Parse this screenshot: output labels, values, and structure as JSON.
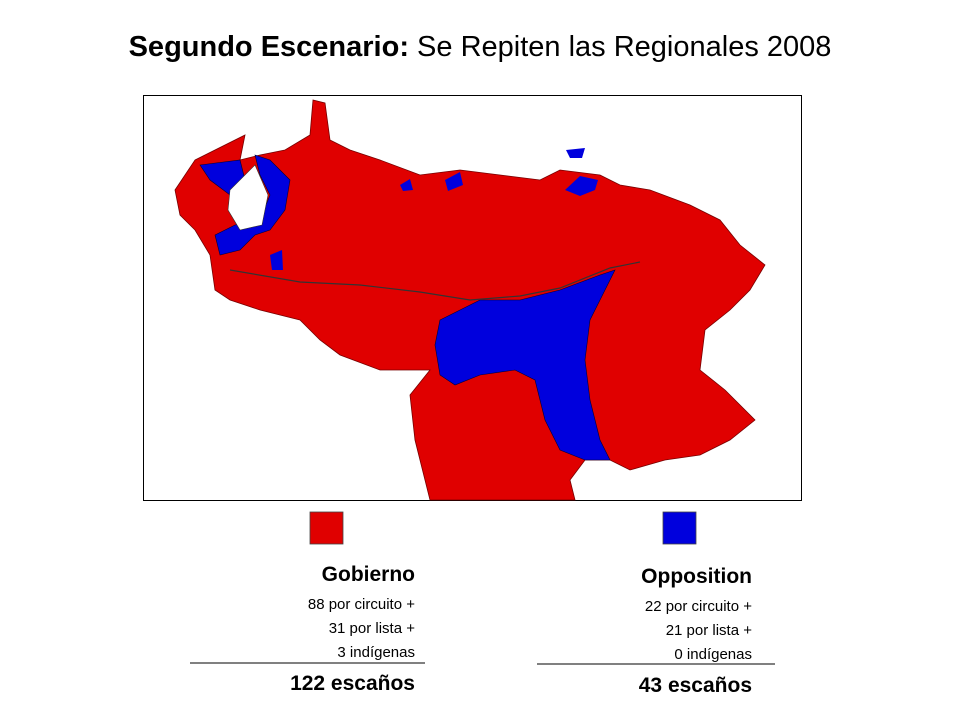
{
  "title": {
    "bold": "Segundo Escenario:",
    "rest": "Se Repiten las Regionales 2008"
  },
  "legend": [
    {
      "name": "Gobierno",
      "color": "#e00000",
      "lines": [
        "88 por circuito +",
        "31 por lista +",
        "3 indígenas"
      ],
      "total": "122 escaños"
    },
    {
      "name": "Opposition",
      "color": "#0000dd",
      "lines": [
        "22 por circuito +",
        "21 por lista +",
        "0 indígenas"
      ],
      "total": "43 escaños"
    }
  ]
}
